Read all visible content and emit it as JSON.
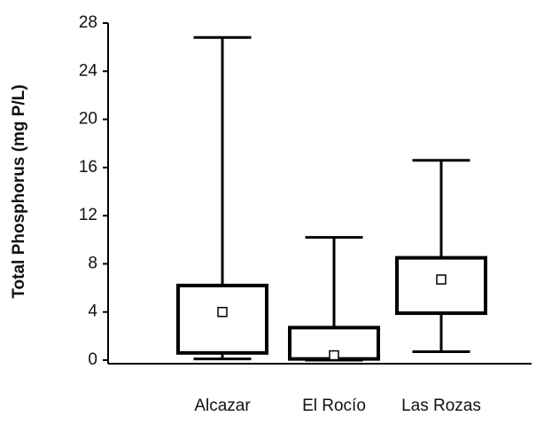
{
  "chart_data": {
    "type": "box",
    "y_label": "Total Phosphorus (mg P/L)",
    "categories": [
      "Alcazar",
      "El Rocío",
      "Las Rozas"
    ],
    "min": [
      0.1,
      0.0,
      0.7
    ],
    "q1": [
      0.6,
      0.1,
      3.9
    ],
    "q3": [
      6.2,
      2.7,
      8.5
    ],
    "max": [
      26.8,
      10.2,
      16.6
    ],
    "mean": [
      4.0,
      0.4,
      6.7
    ],
    "color": "#000000",
    "ylim": [
      0,
      28
    ],
    "yticks": [
      0,
      4,
      8,
      12,
      16,
      20,
      24,
      28
    ]
  }
}
